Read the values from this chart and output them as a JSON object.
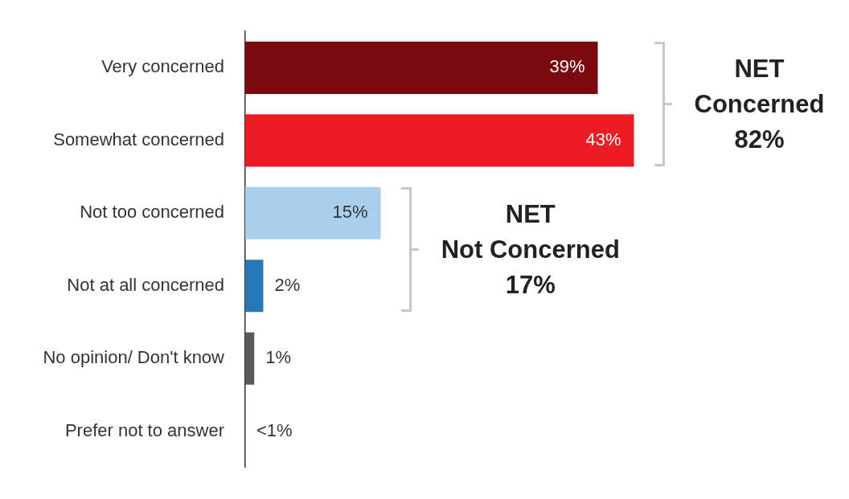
{
  "chart_data": {
    "type": "bar",
    "orientation": "horizontal",
    "tick_labels": "y",
    "legend": false,
    "categories": [
      "Very concerned",
      "Somewhat concerned",
      "Not too concerned",
      "Not at all concerned",
      "No opinion/ Don't know",
      "Prefer not to answer"
    ],
    "values": [
      39,
      43,
      15,
      2,
      1,
      0
    ],
    "colors": [
      "#7a0a10",
      "#ed1c24",
      "#a9cfec",
      "#2878b8",
      "#595959",
      "#595959"
    ],
    "value_labels": [
      "39%",
      "43%",
      "15%",
      "2%",
      "1%",
      "<1%"
    ],
    "annotations": [
      "NET\nConcerned\n82%",
      "NET\nNot Concerned\n17%"
    ]
  }
}
